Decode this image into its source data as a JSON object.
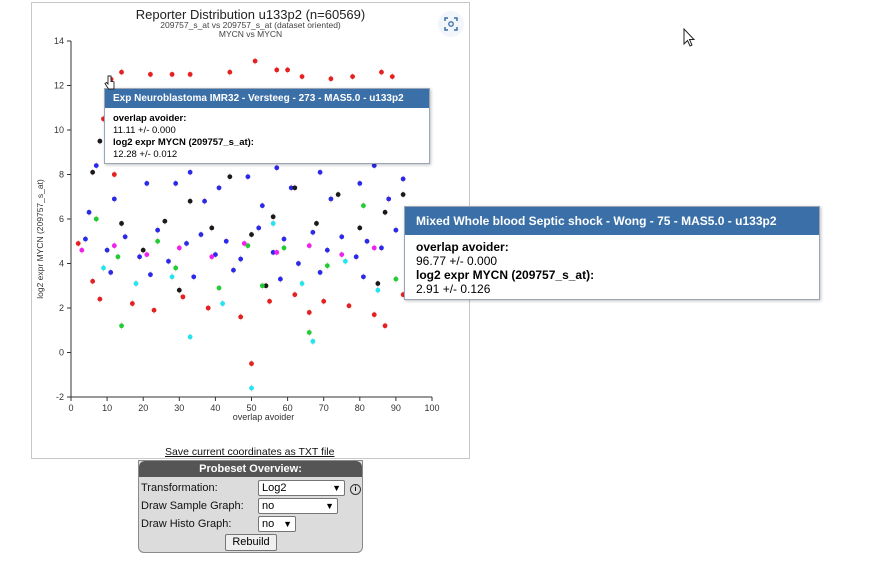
{
  "chart_data": {
    "type": "scatter",
    "title": "Reporter Distribution u133p2 (n=60569)",
    "subtitle1": "209757_s_at vs 209757_s_at (dataset oriented)",
    "subtitle2": "MYCN vs MYCN",
    "xlabel": "overlap avoider",
    "ylabel": "log2 expr MYCN (209757_s_at)",
    "xlim": [
      0,
      100
    ],
    "ylim": [
      -2,
      14
    ],
    "x_ticks": [
      "0",
      "10",
      "20",
      "30",
      "40",
      "50",
      "60",
      "70",
      "80",
      "90",
      "100"
    ],
    "y_ticks": [
      "-2",
      "0",
      "2",
      "4",
      "6",
      "8",
      "10",
      "12",
      "14"
    ],
    "colors": {
      "red": "#e52020",
      "blue": "#2a2ae8",
      "black": "#1a1a1a",
      "green": "#22cc33",
      "cyan": "#22e5ee",
      "magenta": "#ee22ee"
    },
    "series": [
      {
        "color": "red",
        "points": [
          [
            11.11,
            12.28
          ],
          [
            14,
            12.6
          ],
          [
            22,
            12.5
          ],
          [
            28,
            12.5
          ],
          [
            33,
            12.5
          ],
          [
            44,
            12.6
          ],
          [
            51,
            13.1
          ],
          [
            57,
            12.7
          ],
          [
            60,
            12.7
          ],
          [
            64,
            12.4
          ],
          [
            72,
            12.3
          ],
          [
            78,
            12.4
          ],
          [
            86,
            12.6
          ],
          [
            89,
            12.4
          ],
          [
            9,
            10.5
          ],
          [
            12,
            8.0
          ],
          [
            45,
            9.5
          ],
          [
            60,
            9.6
          ],
          [
            2,
            4.9
          ],
          [
            6,
            3.2
          ],
          [
            8,
            2.4
          ],
          [
            17,
            2.2
          ],
          [
            23,
            1.9
          ],
          [
            31,
            2.5
          ],
          [
            38,
            2.0
          ],
          [
            47,
            1.6
          ],
          [
            50,
            -0.5
          ],
          [
            55,
            2.3
          ],
          [
            62,
            2.6
          ],
          [
            66,
            1.8
          ],
          [
            70,
            2.3
          ],
          [
            77,
            2.1
          ],
          [
            84,
            1.7
          ],
          [
            87,
            1.2
          ],
          [
            92,
            2.6
          ]
        ]
      },
      {
        "color": "blue",
        "points": [
          [
            5,
            6.3
          ],
          [
            7,
            8.4
          ],
          [
            12,
            6.9
          ],
          [
            17,
            8.9
          ],
          [
            21,
            7.6
          ],
          [
            26,
            9.1
          ],
          [
            29,
            7.6
          ],
          [
            33,
            8.1
          ],
          [
            37,
            6.8
          ],
          [
            41,
            7.4
          ],
          [
            45,
            8.8
          ],
          [
            49,
            7.9
          ],
          [
            53,
            6.6
          ],
          [
            57,
            8.3
          ],
          [
            61,
            7.4
          ],
          [
            65,
            9.4
          ],
          [
            69,
            8.1
          ],
          [
            72,
            6.9
          ],
          [
            76,
            9.2
          ],
          [
            80,
            7.6
          ],
          [
            84,
            8.4
          ],
          [
            88,
            6.9
          ],
          [
            92,
            7.8
          ],
          [
            4,
            5.1
          ],
          [
            10,
            4.6
          ],
          [
            15,
            5.2
          ],
          [
            19,
            4.3
          ],
          [
            24,
            5.5
          ],
          [
            27,
            4.1
          ],
          [
            32,
            4.9
          ],
          [
            36,
            5.3
          ],
          [
            40,
            4.4
          ],
          [
            43,
            5.0
          ],
          [
            47,
            4.2
          ],
          [
            52,
            5.6
          ],
          [
            56,
            4.5
          ],
          [
            59,
            5.1
          ],
          [
            63,
            4.0
          ],
          [
            67,
            5.4
          ],
          [
            71,
            4.6
          ],
          [
            75,
            5.2
          ],
          [
            79,
            4.3
          ],
          [
            82,
            5.0
          ],
          [
            86,
            4.7
          ],
          [
            90,
            5.5
          ],
          [
            93,
            4.1
          ],
          [
            11,
            3.6
          ],
          [
            22,
            3.5
          ],
          [
            34,
            3.4
          ],
          [
            45,
            3.7
          ],
          [
            58,
            3.3
          ],
          [
            69,
            3.6
          ],
          [
            81,
            3.4
          ]
        ]
      },
      {
        "color": "black",
        "points": [
          [
            6,
            8.1
          ],
          [
            8,
            9.5
          ],
          [
            14,
            5.8
          ],
          [
            20,
            4.6
          ],
          [
            26,
            5.9
          ],
          [
            33,
            6.8
          ],
          [
            39,
            5.6
          ],
          [
            44,
            7.9
          ],
          [
            50,
            5.3
          ],
          [
            56,
            6.1
          ],
          [
            62,
            7.4
          ],
          [
            68,
            5.8
          ],
          [
            74,
            7.1
          ],
          [
            80,
            5.6
          ],
          [
            87,
            6.3
          ],
          [
            92,
            7.1
          ],
          [
            30,
            2.8
          ],
          [
            54,
            3.0
          ],
          [
            85,
            3.1
          ]
        ]
      },
      {
        "color": "green",
        "points": [
          [
            7,
            6.0
          ],
          [
            13,
            4.3
          ],
          [
            14,
            1.2
          ],
          [
            24,
            5.0
          ],
          [
            29,
            3.8
          ],
          [
            41,
            2.9
          ],
          [
            49,
            4.8
          ],
          [
            53,
            3.0
          ],
          [
            59,
            4.7
          ],
          [
            66,
            0.9
          ],
          [
            71,
            3.9
          ],
          [
            81,
            6.6
          ],
          [
            90,
            3.3
          ]
        ]
      },
      {
        "color": "cyan",
        "points": [
          [
            9,
            3.8
          ],
          [
            18,
            3.1
          ],
          [
            28,
            3.4
          ],
          [
            33,
            0.7
          ],
          [
            42,
            2.2
          ],
          [
            50,
            -1.6
          ],
          [
            56,
            5.8
          ],
          [
            64,
            3.1
          ],
          [
            67,
            0.5
          ],
          [
            76,
            4.1
          ],
          [
            85,
            2.8
          ],
          [
            94,
            3.9
          ]
        ]
      },
      {
        "color": "magenta",
        "points": [
          [
            3,
            4.6
          ],
          [
            12,
            4.8
          ],
          [
            21,
            4.4
          ],
          [
            30,
            4.7
          ],
          [
            39,
            4.3
          ],
          [
            48,
            4.9
          ],
          [
            57,
            4.5
          ],
          [
            66,
            4.8
          ],
          [
            75,
            4.4
          ],
          [
            84,
            4.7
          ],
          [
            93,
            4.6
          ]
        ]
      }
    ]
  },
  "save_link": "Save current coordinates as TXT file",
  "tooltip_small": {
    "title": "Exp Neuroblastoma IMR32 - Versteeg - 273 - MAS5.0 - u133p2",
    "label1": "overlap avoider:",
    "value1": "11.11 +/- 0.000",
    "label2": "log2 expr MYCN (209757_s_at):",
    "value2": "12.28 +/- 0.012"
  },
  "tooltip_large": {
    "title": "Mixed Whole blood Septic shock - Wong - 75 - MAS5.0 - u133p2",
    "label1": "overlap avoider:",
    "value1": "96.77 +/- 0.000",
    "label2": "log2 expr MYCN (209757_s_at):",
    "value2": "2.91 +/- 0.126"
  },
  "overview": {
    "title": "Probeset Overview:",
    "transformation_label": "Transformation:",
    "transformation_value": "Log2",
    "info_icon": "info-icon",
    "sample_graph_label": "Draw Sample Graph:",
    "sample_graph_value": "no",
    "histo_graph_label": "Draw Histo Graph:",
    "histo_graph_value": "no",
    "rebuild_label": "Rebuild"
  },
  "icons": {
    "expand": "expand-icon",
    "cursor": "mouse-pointer-icon"
  }
}
